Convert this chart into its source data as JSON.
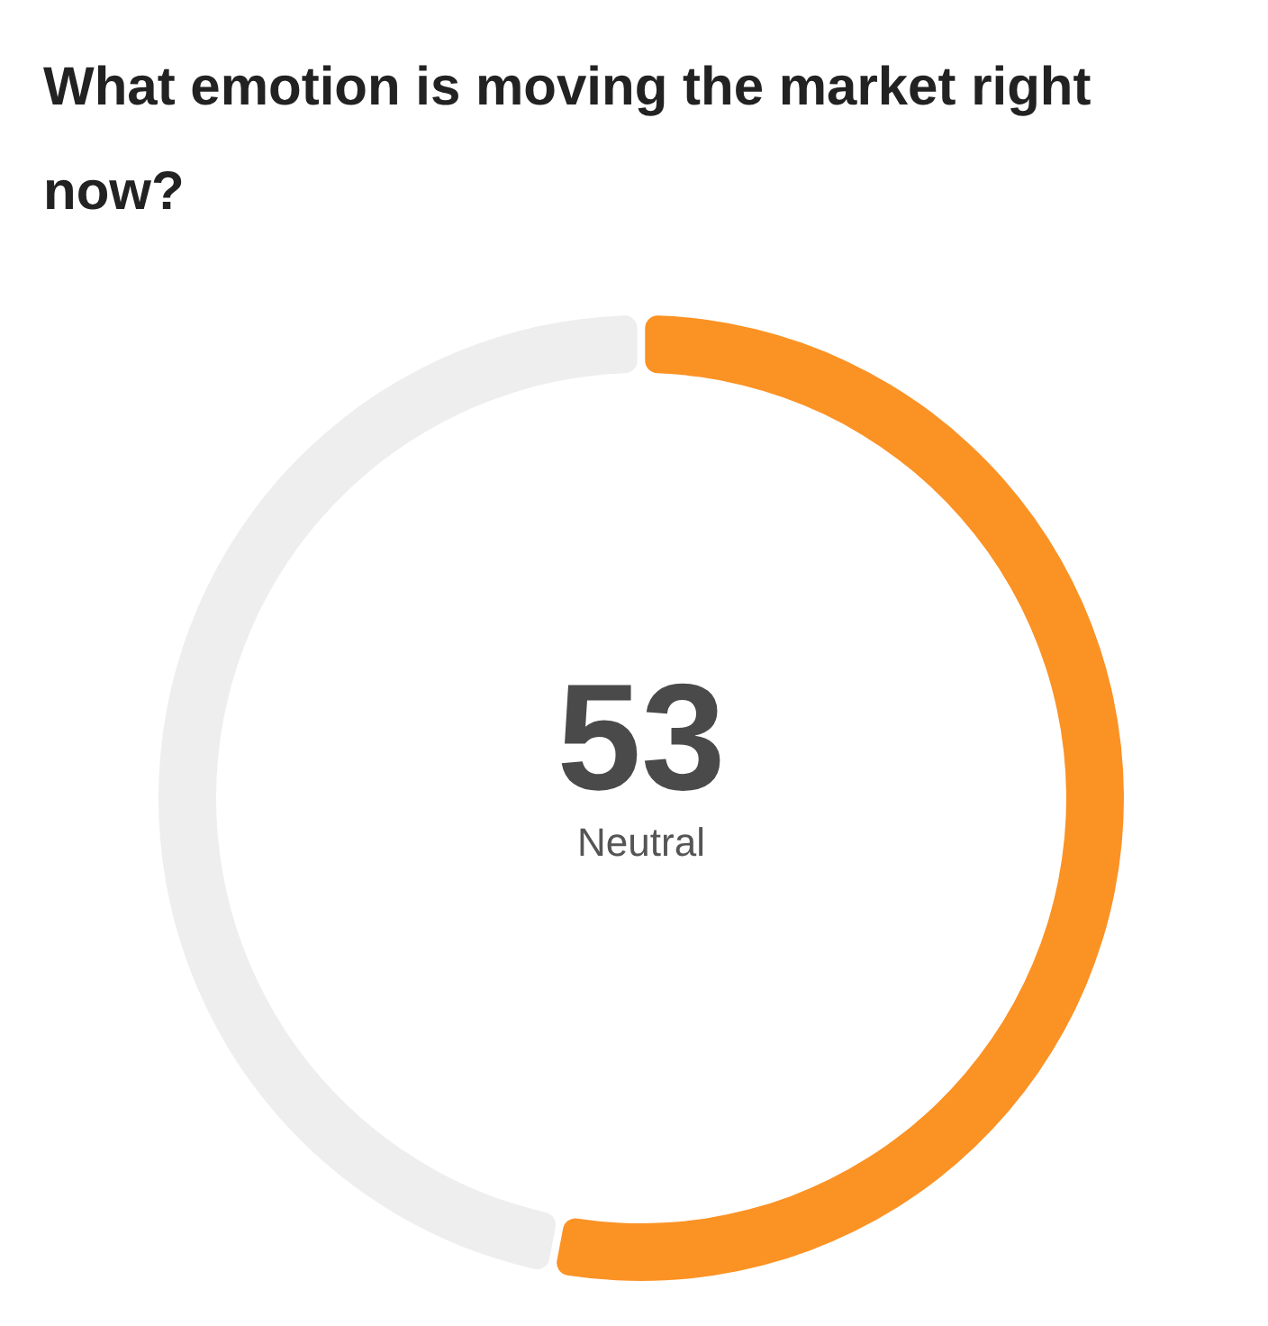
{
  "chart_data": {
    "type": "donut",
    "title": "What emotion is moving the market right now?",
    "categories": [
      "Neutral",
      null
    ],
    "values": [
      53,
      47
    ],
    "colors": [
      "#fb9224",
      "#eeeeee"
    ],
    "value_labels": [
      "53",
      null
    ]
  }
}
